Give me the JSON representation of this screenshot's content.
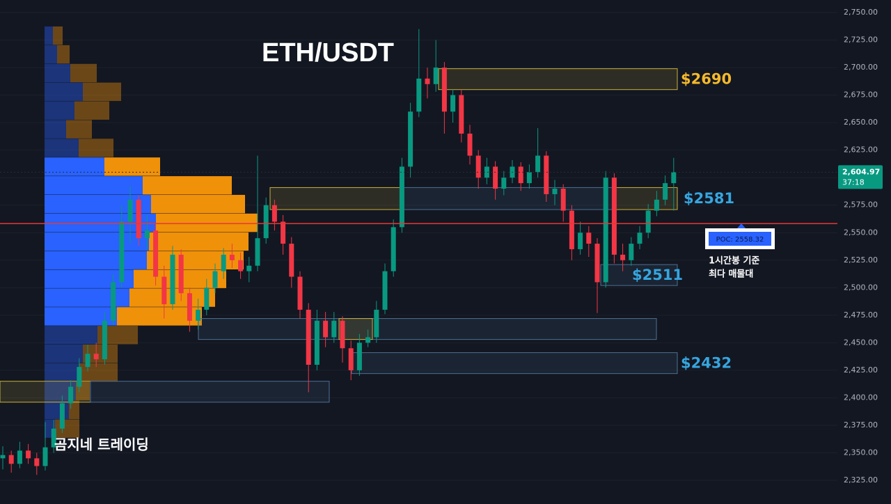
{
  "chart_data": {
    "type": "candlestick",
    "title": "ETH/USDT",
    "watermark": "곰지네 트레이딩",
    "up_color": "#089981",
    "down_color": "#f23645",
    "ylim": [
      2303.5,
      2761.4
    ],
    "yticks": [
      {
        "value": 2325,
        "label": "2,325.00"
      },
      {
        "value": 2350,
        "label": "2,350.00"
      },
      {
        "value": 2375,
        "label": "2,375.00"
      },
      {
        "value": 2400,
        "label": "2,400.00"
      },
      {
        "value": 2425,
        "label": "2,425.00"
      },
      {
        "value": 2450,
        "label": "2,450.00"
      },
      {
        "value": 2475,
        "label": "2,475.00"
      },
      {
        "value": 2500,
        "label": "2,500.00"
      },
      {
        "value": 2525,
        "label": "2,525.00"
      },
      {
        "value": 2550,
        "label": "2,550.00"
      },
      {
        "value": 2575,
        "label": "2,575.00"
      },
      {
        "value": 2600,
        "label": "2,600.00"
      },
      {
        "value": 2625,
        "label": "2,625.00"
      },
      {
        "value": 2650,
        "label": "2,650.00"
      },
      {
        "value": 2675,
        "label": "2,675.00"
      },
      {
        "value": 2700,
        "label": "2,700.00"
      },
      {
        "value": 2725,
        "label": "2,725.00"
      },
      {
        "value": 2750,
        "label": "2,750.00"
      }
    ],
    "grid": true,
    "open": [
      2345,
      2348,
      2340,
      2352,
      2345,
      2338,
      2355,
      2372,
      2395,
      2410,
      2428,
      2440,
      2435,
      2470,
      2505,
      2560,
      2580,
      2545,
      2552,
      2510,
      2485,
      2530,
      2495,
      2470,
      2480,
      2500,
      2515,
      2530,
      2525,
      2515,
      2520,
      2545,
      2575,
      2560,
      2540,
      2510,
      2480,
      2430,
      2470,
      2455,
      2470,
      2445,
      2425,
      2450,
      2455,
      2480,
      2515,
      2555,
      2610,
      2660,
      2690,
      2685,
      2700,
      2660,
      2675,
      2640,
      2620,
      2600,
      2610,
      2590,
      2600,
      2610,
      2595,
      2605,
      2620,
      2585,
      2590,
      2570,
      2535,
      2550,
      2540,
      2505,
      2600,
      2530,
      2525,
      2540,
      2550,
      2570,
      2580,
      2595
    ],
    "high": [
      2356,
      2352,
      2360,
      2358,
      2350,
      2378,
      2380,
      2402,
      2416,
      2436,
      2448,
      2450,
      2478,
      2512,
      2575,
      2592,
      2584,
      2566,
      2558,
      2520,
      2538,
      2535,
      2500,
      2490,
      2508,
      2522,
      2536,
      2540,
      2532,
      2528,
      2620,
      2582,
      2580,
      2566,
      2546,
      2515,
      2486,
      2480,
      2478,
      2478,
      2474,
      2452,
      2458,
      2462,
      2488,
      2522,
      2562,
      2618,
      2668,
      2735,
      2700,
      2725,
      2705,
      2680,
      2680,
      2648,
      2625,
      2618,
      2615,
      2606,
      2616,
      2614,
      2612,
      2645,
      2624,
      2598,
      2594,
      2575,
      2560,
      2556,
      2545,
      2606,
      2604,
      2540,
      2546,
      2556,
      2576,
      2588,
      2602,
      2618
    ],
    "low": [
      2335,
      2332,
      2336,
      2340,
      2330,
      2334,
      2350,
      2368,
      2390,
      2405,
      2424,
      2428,
      2430,
      2466,
      2500,
      2540,
      2538,
      2535,
      2502,
      2472,
      2480,
      2488,
      2460,
      2462,
      2475,
      2495,
      2508,
      2518,
      2508,
      2505,
      2515,
      2540,
      2552,
      2530,
      2500,
      2472,
      2405,
      2425,
      2446,
      2450,
      2432,
      2416,
      2420,
      2446,
      2450,
      2476,
      2510,
      2550,
      2600,
      2655,
      2672,
      2678,
      2640,
      2650,
      2632,
      2612,
      2590,
      2594,
      2580,
      2584,
      2595,
      2588,
      2590,
      2600,
      2578,
      2575,
      2560,
      2525,
      2530,
      2528,
      2477,
      2500,
      2522,
      2515,
      2520,
      2535,
      2545,
      2565,
      2575,
      2570
    ],
    "close": [
      2348,
      2340,
      2352,
      2345,
      2338,
      2355,
      2372,
      2395,
      2410,
      2428,
      2440,
      2435,
      2470,
      2505,
      2560,
      2580,
      2545,
      2552,
      2510,
      2485,
      2530,
      2495,
      2470,
      2480,
      2500,
      2515,
      2530,
      2525,
      2515,
      2520,
      2545,
      2575,
      2560,
      2540,
      2510,
      2480,
      2430,
      2470,
      2455,
      2470,
      2445,
      2425,
      2450,
      2455,
      2480,
      2515,
      2555,
      2610,
      2660,
      2690,
      2685,
      2700,
      2660,
      2675,
      2640,
      2620,
      2600,
      2610,
      2590,
      2600,
      2610,
      2595,
      2605,
      2620,
      2585,
      2590,
      2570,
      2535,
      2550,
      2540,
      2505,
      2600,
      2530,
      2525,
      2540,
      2550,
      2570,
      2580,
      2595,
      2605
    ],
    "volume_profile": {
      "levels": [
        2729,
        2712,
        2695,
        2678,
        2661,
        2644,
        2627,
        2610,
        2593,
        2576,
        2559,
        2542,
        2525,
        2508,
        2491,
        2474,
        2457,
        2440,
        2423,
        2406,
        2389,
        2372
      ],
      "buy": [
        12,
        18,
        37,
        55,
        43,
        31,
        49,
        86,
        141,
        153,
        160,
        150,
        147,
        128,
        122,
        104,
        76,
        55,
        50,
        45,
        35,
        15
      ],
      "sell": [
        14,
        18,
        38,
        55,
        50,
        37,
        50,
        80,
        128,
        135,
        146,
        143,
        139,
        133,
        123,
        122,
        58,
        50,
        55,
        20,
        15,
        35
      ],
      "value_area": [
        2474,
        2610
      ],
      "buy_color": "#2962ff",
      "sell_color": "#f0910a"
    },
    "zones": [
      {
        "range": [
          2680,
          2699
        ],
        "color": "#c9b03a",
        "label": "$2690",
        "label_color": "#f5b92a"
      },
      {
        "range": [
          2571,
          2591
        ],
        "color": "#c9b03a"
      },
      {
        "range": [
          2571,
          2591
        ],
        "color": "#4d6f94"
      },
      {
        "range": [
          2571,
          2591
        ],
        "color": "#c9b03a",
        "label": "$2581",
        "label_color": "#35a6e0"
      },
      {
        "range": [
          2502,
          2521
        ],
        "color": "#4d6f94",
        "label": "$2511",
        "label_color": "#35a6e0"
      },
      {
        "range": [
          2453,
          2472
        ],
        "color": "#4d6f94"
      },
      {
        "range": [
          2453,
          2472
        ],
        "color": "#c9b03a"
      },
      {
        "range": [
          2422,
          2441
        ],
        "color": "#4d6f94",
        "label": "$2432",
        "label_color": "#35a6e0"
      },
      {
        "range": [
          2396,
          2415
        ],
        "color": "#c9b03a"
      },
      {
        "range": [
          2396,
          2415
        ],
        "color": "#4d6f94"
      }
    ],
    "poc": {
      "value": 2558.32,
      "label": "POC: 2558.32",
      "color": "#e53935"
    },
    "poc_note": [
      "1시간봉 기준",
      "최다 매물대"
    ],
    "last_price": {
      "value": 2604.97,
      "label": "2,604.97"
    },
    "countdown": "37:18"
  }
}
